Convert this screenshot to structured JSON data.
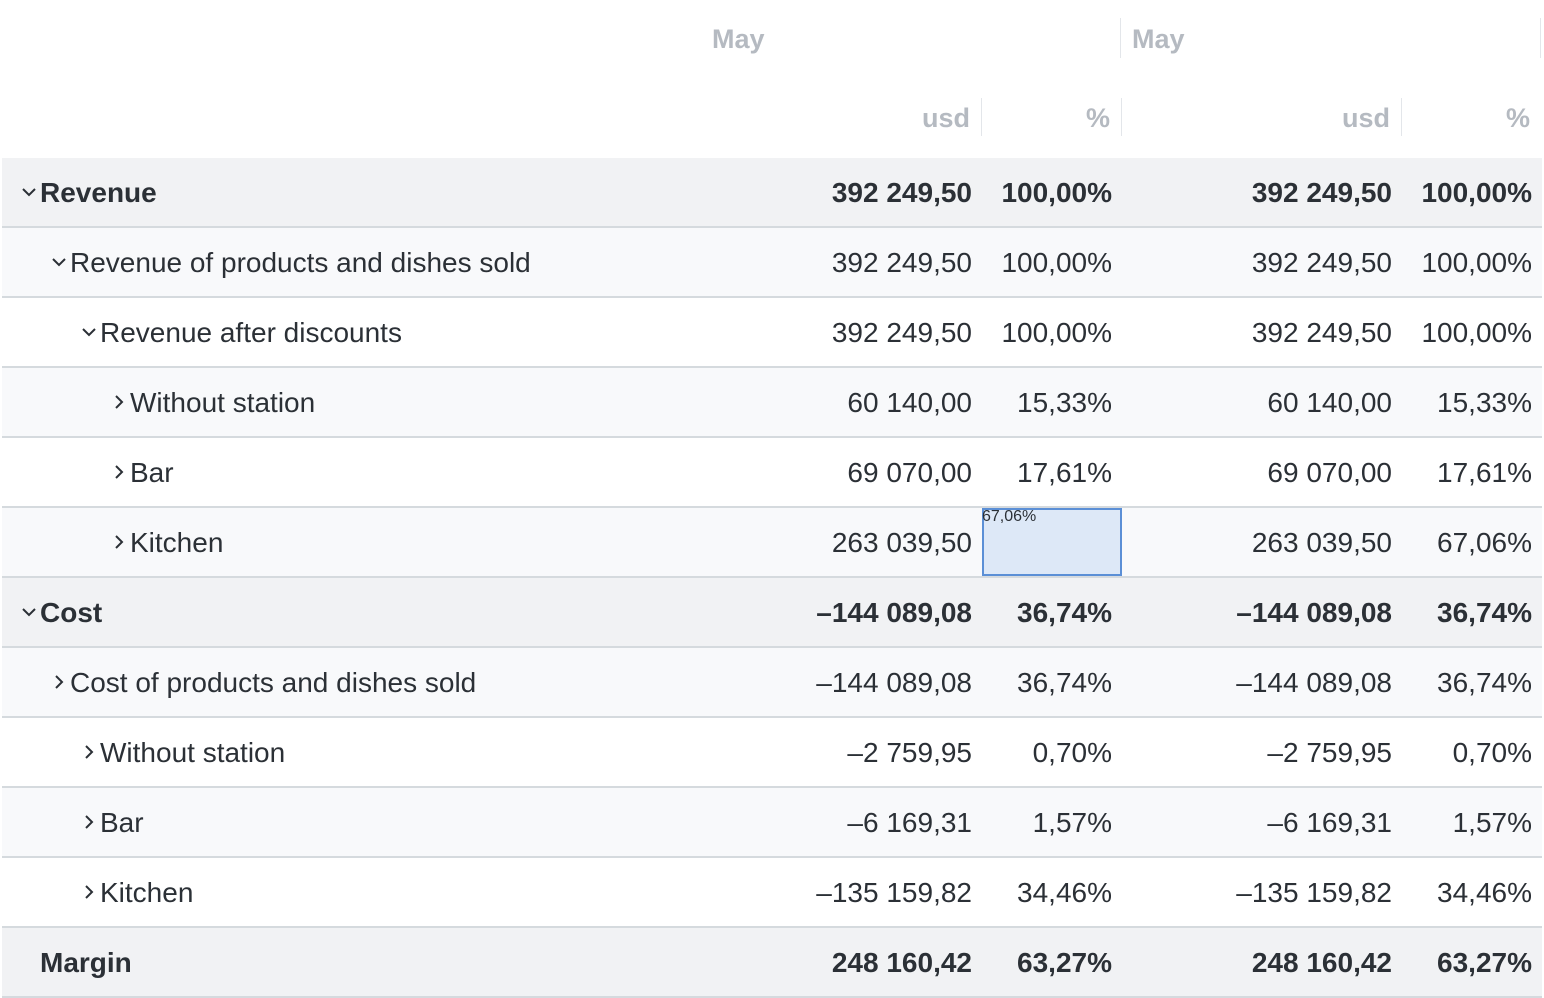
{
  "header": {
    "periods": [
      "May",
      "May"
    ],
    "units": [
      "usd",
      "%",
      "usd",
      "%"
    ]
  },
  "rows": [
    {
      "label": "Revenue",
      "expander": "expanded",
      "level": 0,
      "bold": true,
      "values": [
        "392 249,50",
        "100,00%",
        "392 249,50",
        "100,00%"
      ]
    },
    {
      "label": "Revenue of products and dishes sold",
      "expander": "expanded",
      "level": 1,
      "bold": false,
      "values": [
        "392 249,50",
        "100,00%",
        "392 249,50",
        "100,00%"
      ]
    },
    {
      "label": "Revenue after discounts",
      "expander": "expanded",
      "level": 2,
      "bold": false,
      "values": [
        "392 249,50",
        "100,00%",
        "392 249,50",
        "100,00%"
      ]
    },
    {
      "label": "Without station",
      "expander": "collapsed",
      "level": 3,
      "bold": false,
      "values": [
        "60 140,00",
        "15,33%",
        "60 140,00",
        "15,33%"
      ]
    },
    {
      "label": "Bar",
      "expander": "collapsed",
      "level": 3,
      "bold": false,
      "values": [
        "69 070,00",
        "17,61%",
        "69 070,00",
        "17,61%"
      ]
    },
    {
      "label": "Kitchen",
      "expander": "collapsed",
      "level": 3,
      "bold": false,
      "values": [
        "263 039,50",
        "67,06%",
        "263 039,50",
        "67,06%"
      ]
    },
    {
      "label": "Cost",
      "expander": "expanded",
      "level": 0,
      "bold": true,
      "values": [
        "–144 089,08",
        "36,74%",
        "–144 089,08",
        "36,74%"
      ]
    },
    {
      "label": "Cost of products and dishes sold",
      "expander": "collapsed",
      "level": 1,
      "bold": false,
      "values": [
        "–144 089,08",
        "36,74%",
        "–144 089,08",
        "36,74%"
      ]
    },
    {
      "label": "Without station",
      "expander": "collapsed",
      "level": 2,
      "bold": false,
      "values": [
        "–2 759,95",
        "0,70%",
        "–2 759,95",
        "0,70%"
      ]
    },
    {
      "label": "Bar",
      "expander": "collapsed",
      "level": 2,
      "bold": false,
      "values": [
        "–6 169,31",
        "1,57%",
        "–6 169,31",
        "1,57%"
      ]
    },
    {
      "label": "Kitchen",
      "expander": "collapsed",
      "level": 2,
      "bold": false,
      "values": [
        "–135 159,82",
        "34,46%",
        "–135 159,82",
        "34,46%"
      ]
    },
    {
      "label": "Margin",
      "expander": "none",
      "level": 0,
      "bold": true,
      "values": [
        "248 160,42",
        "63,27%",
        "248 160,42",
        "63,27%"
      ]
    }
  ],
  "selection": {
    "row": 5,
    "col": 1
  },
  "icons": {
    "expanded": "chevron-down-icon",
    "collapsed": "chevron-right-icon"
  },
  "colors": {
    "header_text": "#b5bac1",
    "total_row_bg": "#f1f2f4",
    "selected_cell_bg": "#dde8f7",
    "selected_cell_border": "#5b8fd6"
  }
}
